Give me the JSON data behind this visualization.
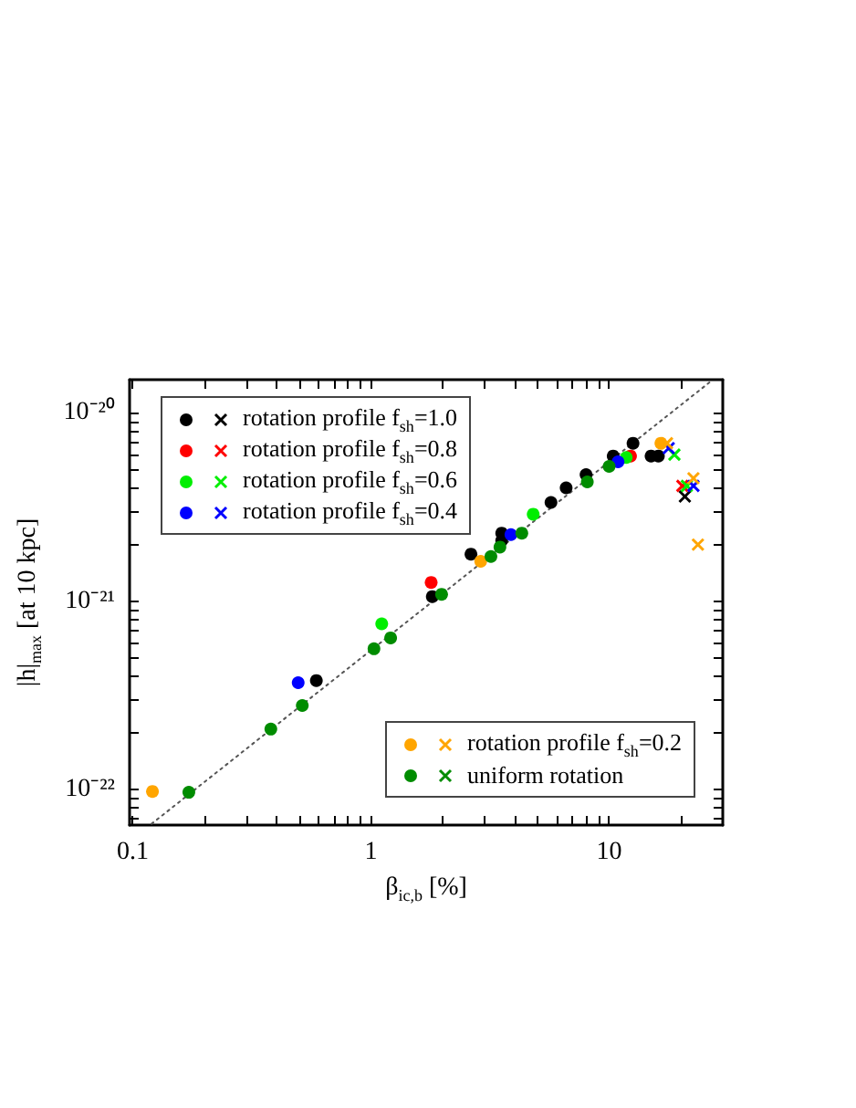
{
  "chart_data": {
    "type": "scatter",
    "xlabel": "β$_{ic,b}$ [%]",
    "ylabel": "|h|$_{max}$ [at 10 kpc]",
    "log": "xy",
    "legend": "top left",
    "grid": false,
    "xlim": [
      0.097,
      30
    ],
    "ylim": [
      6.5e-23,
      1.5e-20
    ],
    "xticks": [
      {
        "value": 0.1,
        "label": "0.1"
      },
      {
        "value": 0.2,
        "label": null
      },
      {
        "value": 0.3,
        "label": null
      },
      {
        "value": 0.4,
        "label": null
      },
      {
        "value": 0.5,
        "label": null
      },
      {
        "value": 0.6,
        "label": null
      },
      {
        "value": 0.7,
        "label": null
      },
      {
        "value": 0.8,
        "label": null
      },
      {
        "value": 0.9,
        "label": null
      },
      1,
      {
        "value": 2,
        "label": null
      },
      {
        "value": 3,
        "label": null
      },
      {
        "value": 4,
        "label": null
      },
      {
        "value": 5,
        "label": null
      },
      {
        "value": 6,
        "label": null
      },
      {
        "value": 7,
        "label": null
      },
      {
        "value": 8,
        "label": null
      },
      {
        "value": 9,
        "label": null
      },
      10,
      {
        "value": 20,
        "label": null
      }
    ],
    "yticks": [
      {
        "value": 7e-23,
        "label": null
      },
      {
        "value": 8e-23,
        "label": null
      },
      {
        "value": 9e-23,
        "label": null
      },
      {
        "value": 1e-22,
        "label": "10⁻²²"
      },
      {
        "value": 2e-22,
        "label": null
      },
      {
        "value": 3e-22,
        "label": null
      },
      {
        "value": 4e-22,
        "label": null
      },
      {
        "value": 5e-22,
        "label": null
      },
      {
        "value": 6e-22,
        "label": null
      },
      {
        "value": 7e-22,
        "label": null
      },
      {
        "value": 8e-22,
        "label": null
      },
      {
        "value": 9e-22,
        "label": null
      },
      {
        "value": 1e-21,
        "label": "10⁻²¹"
      },
      {
        "value": 2e-21,
        "label": null
      },
      {
        "value": 3e-21,
        "label": null
      },
      {
        "value": 4e-21,
        "label": null
      },
      {
        "value": 5e-21,
        "label": null
      },
      {
        "value": 6e-21,
        "label": null
      },
      {
        "value": 7e-21,
        "label": null
      },
      {
        "value": 8e-21,
        "label": null
      },
      {
        "value": 9e-21,
        "label": null
      },
      {
        "value": 1e-20,
        "label": "10⁻²⁰"
      }
    ],
    "series": [
      {
        "type": "line",
        "color": "#555555",
        "line_style": "dotted",
        "marker": "none",
        "x": [
          0.12,
          27
        ],
        "values": [
          6.6e-23,
          1.485e-20
        ]
      },
      {
        "name": "rotation profile f$_{sh}$=1.0",
        "color": "#000000",
        "marker": "circle",
        "x": [
          1.81,
          3.54,
          5.7,
          8.0,
          10.4,
          12.6,
          2.63,
          3.54,
          6.6,
          15,
          16.1,
          0.59
        ],
        "values": [
          1.06e-21,
          2.1e-21,
          3.35e-21,
          4.7e-21,
          5.9e-21,
          6.9e-21,
          1.78e-21,
          2.3e-21,
          4e-21,
          5.9e-21,
          5.9e-21,
          3.8e-22
        ]
      },
      {
        "color": "#000000",
        "marker": "cross",
        "x": [
          20.8
        ],
        "values": [
          3.6e-21
        ]
      },
      {
        "name": "rotation profile f$_{sh}$=0.8",
        "color": "#ff0000",
        "marker": "circle",
        "x": [
          1.79,
          12.3
        ],
        "values": [
          1.26e-21,
          5.9e-21
        ]
      },
      {
        "color": "#ff0000",
        "marker": "cross",
        "x": [
          20.3
        ],
        "values": [
          4.1e-21
        ]
      },
      {
        "name": "rotation profile f$_{sh}$=0.6",
        "color": "#00ee00",
        "marker": "circle",
        "x": [
          1.11,
          4.8,
          11.8
        ],
        "values": [
          7.6e-22,
          2.9e-21,
          5.8e-21
        ]
      },
      {
        "color": "#00ee00",
        "marker": "cross",
        "x": [
          18.8,
          21.2
        ],
        "values": [
          6e-21,
          4.1e-21
        ]
      },
      {
        "name": "rotation profile f$_{sh}$=0.4",
        "color": "#0000ff",
        "marker": "circle",
        "x": [
          3.87,
          10.9,
          0.495
        ],
        "values": [
          2.26e-21,
          5.5e-21,
          3.7e-22
        ]
      },
      {
        "color": "#0000ff",
        "marker": "cross",
        "x": [
          17.8,
          22.6
        ],
        "values": [
          6.5e-21,
          4.1e-21
        ]
      },
      {
        "name": "rotation profile f$_{sh}$=0.2",
        "color": "#ffa500",
        "marker": "circle",
        "x": [
          2.89,
          16.5,
          0.121
        ],
        "values": [
          1.63e-21,
          6.9e-21,
          9.8e-23
        ]
      },
      {
        "color": "#ffa500",
        "marker": "cross",
        "x": [
          17.5,
          22.6,
          23.6
        ],
        "values": [
          6.9e-21,
          4.5e-21,
          2e-21
        ]
      },
      {
        "name": "uniform rotation",
        "color": "#008c00",
        "marker": "circle",
        "x": [
          1.03,
          1.98,
          3.19,
          3.48,
          1.21,
          4.3,
          8.1,
          10.0,
          0.172,
          0.38,
          0.515
        ],
        "values": [
          5.6e-22,
          1.09e-21,
          1.73e-21,
          1.94e-21,
          6.4e-22,
          2.3e-21,
          4.3e-21,
          5.2e-21,
          9.7e-23,
          2.1e-22,
          2.8e-22
        ]
      }
    ]
  }
}
